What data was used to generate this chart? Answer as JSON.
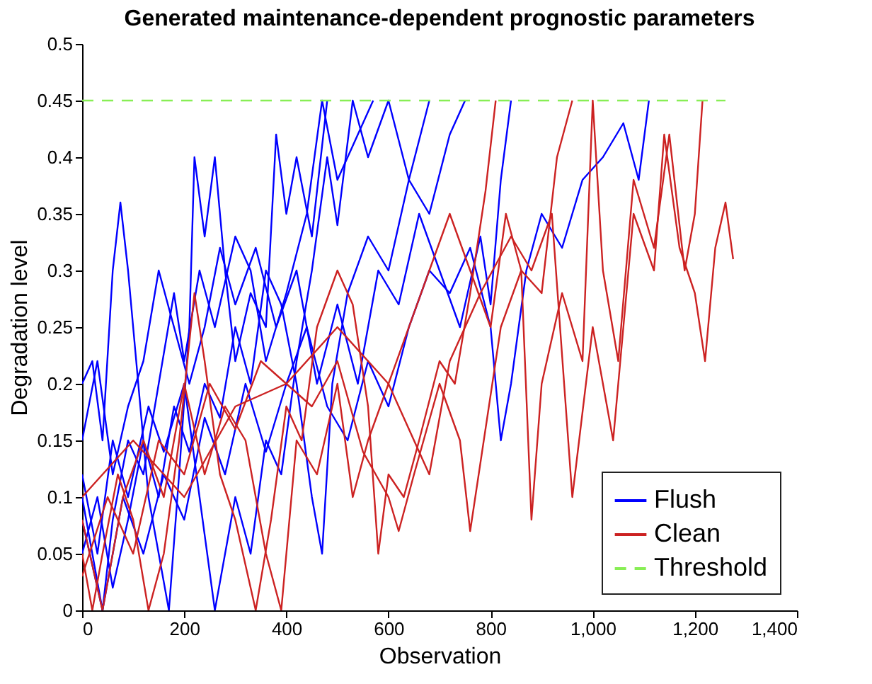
{
  "chart_data": {
    "type": "line",
    "title": "Generated maintenance-dependent prognostic parameters",
    "xlabel": "Observation",
    "ylabel": "Degradation level",
    "xlim": [
      0,
      1400
    ],
    "xticks": [
      0,
      200,
      400,
      600,
      800,
      {
        "value": 1000,
        "label": "1,000"
      },
      {
        "value": 1200,
        "label": "1,200"
      },
      {
        "value": 1400,
        "label": "1,400"
      }
    ],
    "ylim": [
      0,
      0.5
    ],
    "yticks": [
      0,
      0.05,
      0.1,
      0.15,
      0.2,
      0.25,
      0.3,
      0.35,
      0.4,
      0.45,
      0.5
    ],
    "grid": false,
    "legend": "bottom right",
    "series": [
      {
        "name": "Flush",
        "color": "#0000ff",
        "x": [
          0,
          20,
          40,
          60,
          75,
          90,
          110,
          130,
          150,
          170,
          190,
          210,
          220,
          240,
          260,
          280,
          300,
          330,
          360,
          380,
          400,
          420,
          450,
          480
        ],
        "values": [
          0.2,
          0.22,
          0.15,
          0.3,
          0.36,
          0.3,
          0.2,
          0.1,
          0.05,
          0.0,
          0.12,
          0.25,
          0.4,
          0.33,
          0.4,
          0.3,
          0.22,
          0.28,
          0.25,
          0.42,
          0.35,
          0.4,
          0.33,
          0.45
        ]
      },
      {
        "color": "#0000ff",
        "x": [
          0,
          20,
          40,
          60,
          90,
          120,
          150,
          180,
          200,
          230,
          260,
          300,
          330,
          360,
          400,
          440,
          470,
          500,
          540,
          570
        ],
        "values": [
          0.1,
          0.05,
          0.0,
          0.08,
          0.15,
          0.12,
          0.2,
          0.28,
          0.22,
          0.3,
          0.25,
          0.33,
          0.3,
          0.22,
          0.28,
          0.35,
          0.45,
          0.38,
          0.42,
          0.45
        ]
      },
      {
        "color": "#0000ff",
        "x": [
          0,
          30,
          60,
          90,
          120,
          150,
          180,
          210,
          240,
          270,
          300,
          330,
          360,
          390,
          420,
          450,
          470,
          490,
          520,
          560,
          600,
          640,
          680,
          720,
          750
        ],
        "values": [
          0.05,
          0.1,
          0.02,
          0.08,
          0.15,
          0.1,
          0.18,
          0.14,
          0.2,
          0.17,
          0.25,
          0.2,
          0.3,
          0.27,
          0.2,
          0.1,
          0.05,
          0.2,
          0.28,
          0.33,
          0.3,
          0.38,
          0.35,
          0.42,
          0.45
        ]
      },
      {
        "color": "#0000ff",
        "x": [
          0,
          30,
          60,
          90,
          120,
          150,
          180,
          210,
          240,
          270,
          300,
          340,
          380,
          420,
          460,
          500,
          540,
          580,
          620,
          660,
          700,
          740,
          780,
          800,
          820,
          840
        ],
        "values": [
          0.15,
          0.22,
          0.12,
          0.18,
          0.22,
          0.3,
          0.25,
          0.2,
          0.25,
          0.32,
          0.27,
          0.32,
          0.25,
          0.3,
          0.2,
          0.27,
          0.2,
          0.3,
          0.27,
          0.35,
          0.3,
          0.25,
          0.33,
          0.27,
          0.38,
          0.45
        ]
      },
      {
        "color": "#0000ff",
        "x": [
          0,
          40,
          80,
          120,
          160,
          200,
          240,
          280,
          320,
          360,
          400,
          440,
          480,
          520,
          560,
          600,
          640,
          680,
          720,
          760,
          800,
          820,
          840,
          870,
          900,
          940,
          980,
          1020,
          1060,
          1090,
          1110
        ],
        "values": [
          0.08,
          0.0,
          0.1,
          0.05,
          0.12,
          0.08,
          0.17,
          0.12,
          0.2,
          0.14,
          0.2,
          0.25,
          0.18,
          0.15,
          0.22,
          0.18,
          0.25,
          0.3,
          0.28,
          0.32,
          0.25,
          0.15,
          0.2,
          0.3,
          0.35,
          0.32,
          0.38,
          0.4,
          0.43,
          0.38,
          0.45
        ]
      },
      {
        "color": "#0000ff",
        "x": [
          0,
          30,
          60,
          90,
          130,
          160,
          200,
          230,
          260,
          300,
          330,
          360,
          390,
          420,
          450,
          480,
          500,
          530,
          560,
          600,
          640,
          680
        ],
        "values": [
          0.12,
          0.05,
          0.15,
          0.1,
          0.18,
          0.14,
          0.2,
          0.1,
          0.0,
          0.1,
          0.05,
          0.15,
          0.12,
          0.22,
          0.3,
          0.4,
          0.34,
          0.45,
          0.4,
          0.45,
          0.38,
          0.45
        ]
      },
      {
        "name": "Clean",
        "color": "#cc2222",
        "x": [
          0,
          20,
          40,
          70,
          100,
          130,
          160,
          190,
          220,
          240,
          270,
          300,
          340,
          370,
          400,
          430,
          460,
          500,
          530,
          560,
          580,
          600,
          630,
          660,
          700,
          730,
          760,
          790,
          810
        ],
        "values": [
          0.05,
          0.0,
          0.05,
          0.12,
          0.08,
          0.0,
          0.05,
          0.15,
          0.28,
          0.22,
          0.12,
          0.08,
          0.0,
          0.08,
          0.18,
          0.15,
          0.25,
          0.3,
          0.27,
          0.18,
          0.05,
          0.12,
          0.1,
          0.15,
          0.22,
          0.2,
          0.28,
          0.37,
          0.45
        ]
      },
      {
        "color": "#cc2222",
        "x": [
          0,
          40,
          80,
          120,
          160,
          200,
          240,
          280,
          320,
          360,
          390,
          420,
          460,
          500,
          530,
          560,
          600,
          640,
          680,
          720,
          760,
          800,
          830,
          860,
          900,
          930,
          960
        ],
        "values": [
          0.08,
          0.0,
          0.1,
          0.15,
          0.1,
          0.2,
          0.12,
          0.18,
          0.15,
          0.05,
          0.0,
          0.15,
          0.12,
          0.2,
          0.1,
          0.15,
          0.2,
          0.25,
          0.3,
          0.35,
          0.3,
          0.25,
          0.35,
          0.3,
          0.28,
          0.4,
          0.45
        ]
      },
      {
        "color": "#cc2222",
        "x": [
          0,
          50,
          100,
          150,
          200,
          250,
          300,
          350,
          400,
          450,
          500,
          550,
          600,
          620,
          650,
          700,
          740,
          760,
          780,
          820,
          860,
          880,
          900,
          940,
          980,
          1000,
          1020,
          1050,
          1080,
          1120,
          1150,
          1180,
          1200,
          1215
        ],
        "values": [
          0.03,
          0.1,
          0.05,
          0.15,
          0.12,
          0.2,
          0.16,
          0.22,
          0.2,
          0.18,
          0.22,
          0.14,
          0.1,
          0.07,
          0.12,
          0.2,
          0.15,
          0.07,
          0.13,
          0.25,
          0.3,
          0.08,
          0.2,
          0.28,
          0.22,
          0.45,
          0.3,
          0.22,
          0.38,
          0.32,
          0.42,
          0.3,
          0.35,
          0.45
        ]
      },
      {
        "color": "#cc2222",
        "x": [
          0,
          100,
          200,
          300,
          400,
          500,
          600,
          680,
          720,
          780,
          840,
          880,
          920,
          960,
          1000,
          1040,
          1080,
          1120,
          1140,
          1170,
          1200,
          1220,
          1240,
          1260,
          1275
        ],
        "values": [
          0.1,
          0.15,
          0.1,
          0.18,
          0.2,
          0.25,
          0.2,
          0.12,
          0.22,
          0.28,
          0.33,
          0.3,
          0.35,
          0.1,
          0.25,
          0.15,
          0.35,
          0.3,
          0.42,
          0.32,
          0.28,
          0.22,
          0.32,
          0.36,
          0.31
        ]
      },
      {
        "name": "Threshold",
        "color": "#88ee55",
        "line_style": "dashed",
        "x": [
          0,
          1260
        ],
        "values": [
          0.45,
          0.45
        ]
      }
    ]
  }
}
